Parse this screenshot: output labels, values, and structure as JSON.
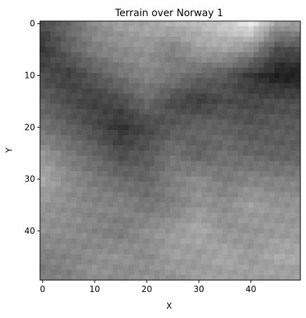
{
  "chart_data": {
    "type": "heatmap",
    "title": "Terrain over Norway 1",
    "xlabel": "X",
    "ylabel": "Y",
    "colormap": "gray",
    "grid": false,
    "xlim": [
      -0.5,
      49.5
    ],
    "ylim": [
      49.5,
      -0.5
    ],
    "x_ticks": [
      0,
      10,
      20,
      30,
      40
    ],
    "y_ticks": [
      0,
      10,
      20,
      30,
      40
    ],
    "rows": 50,
    "cols": 50,
    "anchor_grid_note_values_normalized_0_to_1": true,
    "anchor_step": 5,
    "anchors": [
      [
        0.3,
        0.42,
        0.55,
        0.62,
        0.66,
        0.7,
        0.72,
        0.8,
        0.92,
        0.62
      ],
      [
        0.22,
        0.38,
        0.5,
        0.55,
        0.58,
        0.5,
        0.62,
        0.64,
        0.55,
        0.3
      ],
      [
        0.3,
        0.25,
        0.35,
        0.45,
        0.52,
        0.48,
        0.4,
        0.35,
        0.22,
        0.12
      ],
      [
        0.38,
        0.3,
        0.25,
        0.3,
        0.42,
        0.3,
        0.24,
        0.3,
        0.28,
        0.3
      ],
      [
        0.45,
        0.38,
        0.3,
        0.2,
        0.28,
        0.35,
        0.4,
        0.38,
        0.34,
        0.36
      ],
      [
        0.58,
        0.48,
        0.4,
        0.3,
        0.35,
        0.45,
        0.38,
        0.44,
        0.4,
        0.38
      ],
      [
        0.66,
        0.55,
        0.48,
        0.42,
        0.4,
        0.5,
        0.55,
        0.48,
        0.52,
        0.5
      ],
      [
        0.58,
        0.55,
        0.52,
        0.52,
        0.46,
        0.5,
        0.58,
        0.55,
        0.62,
        0.58
      ],
      [
        0.56,
        0.55,
        0.52,
        0.48,
        0.56,
        0.6,
        0.66,
        0.58,
        0.58,
        0.6
      ],
      [
        0.5,
        0.52,
        0.55,
        0.58,
        0.54,
        0.62,
        0.6,
        0.66,
        0.6,
        0.66
      ],
      [
        0.48,
        0.5,
        0.58,
        0.52,
        0.58,
        0.56,
        0.62,
        0.6,
        0.64,
        0.6
      ]
    ]
  }
}
